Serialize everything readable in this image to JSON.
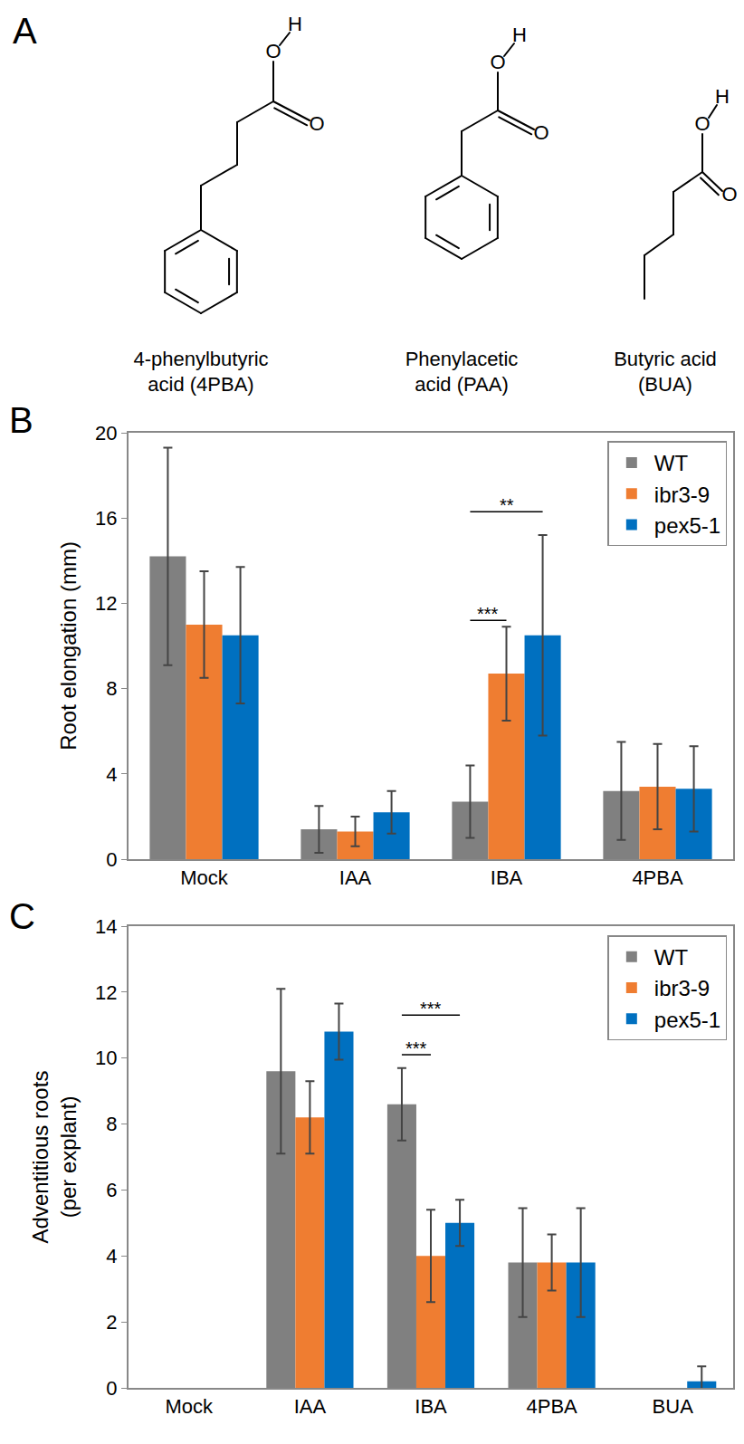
{
  "panel_a": {
    "label": "A",
    "molecules": [
      {
        "name_lines": [
          "4-phenylbutyric",
          "acid (4PBA)"
        ],
        "atoms": [
          "O",
          "H",
          "O"
        ]
      },
      {
        "name_lines": [
          "Phenylacetic",
          "acid (PAA)"
        ],
        "atoms": [
          "O",
          "H",
          "O"
        ]
      },
      {
        "name_lines": [
          "Butyric acid",
          "(BUA)"
        ],
        "atoms": [
          "O",
          "H",
          "O"
        ]
      }
    ]
  },
  "chart_data": [
    {
      "label": "B",
      "type": "bar",
      "y_label": "Root elongation (mm)",
      "categories": [
        "Mock",
        "IAA",
        "IBA",
        "4PBA"
      ],
      "series": [
        {
          "name": "WT",
          "color": "#808080",
          "values": [
            14.2,
            1.4,
            2.7,
            3.2
          ],
          "errors": [
            5.1,
            1.1,
            1.7,
            2.3
          ]
        },
        {
          "name": "ibr3-9",
          "color": "#ef7d31",
          "values": [
            11.0,
            1.3,
            8.7,
            3.4
          ],
          "errors": [
            2.5,
            0.7,
            2.2,
            2.0
          ]
        },
        {
          "name": "pex5-1",
          "color": "#0070c0",
          "values": [
            10.5,
            2.2,
            10.5,
            3.3
          ],
          "errors": [
            3.2,
            1.0,
            4.7,
            2.0
          ]
        }
      ],
      "ylim": [
        0,
        20
      ],
      "yticks": [
        0,
        4,
        8,
        12,
        16,
        20
      ],
      "grid": false,
      "legend": "top right",
      "significance": [
        {
          "text": "***",
          "category": "IBA",
          "between": [
            "WT",
            "ibr3-9"
          ],
          "y": 11.2
        },
        {
          "text": "**",
          "category": "IBA",
          "between": [
            "WT",
            "pex5-1"
          ],
          "y": 16.3
        }
      ]
    },
    {
      "label": "C",
      "type": "bar",
      "y_label": [
        "Adventitious roots",
        "(per explant)"
      ],
      "categories": [
        "Mock",
        "IAA",
        "IBA",
        "4PBA",
        "BUA"
      ],
      "series": [
        {
          "name": "WT",
          "color": "#808080",
          "values": [
            0,
            9.6,
            8.6,
            3.8,
            0
          ],
          "errors": [
            null,
            2.5,
            1.1,
            1.65,
            null
          ]
        },
        {
          "name": "ibr3-9",
          "color": "#ef7d31",
          "values": [
            0,
            8.2,
            4.0,
            3.8,
            0
          ],
          "errors": [
            null,
            1.1,
            1.4,
            0.85,
            null
          ]
        },
        {
          "name": "pex5-1",
          "color": "#0070c0",
          "values": [
            0,
            10.8,
            5.0,
            3.8,
            0.2
          ],
          "errors": [
            null,
            0.85,
            0.7,
            1.65,
            0.45
          ]
        }
      ],
      "ylim": [
        0,
        14
      ],
      "yticks": [
        0,
        2,
        4,
        6,
        8,
        10,
        12,
        14
      ],
      "grid": false,
      "legend": "top right",
      "significance": [
        {
          "text": "***",
          "category": "IBA",
          "between": [
            "WT",
            "ibr3-9"
          ],
          "y": 10.1
        },
        {
          "text": "***",
          "category": "IBA",
          "between": [
            "WT",
            "pex5-1"
          ],
          "y": 11.3
        }
      ]
    }
  ]
}
